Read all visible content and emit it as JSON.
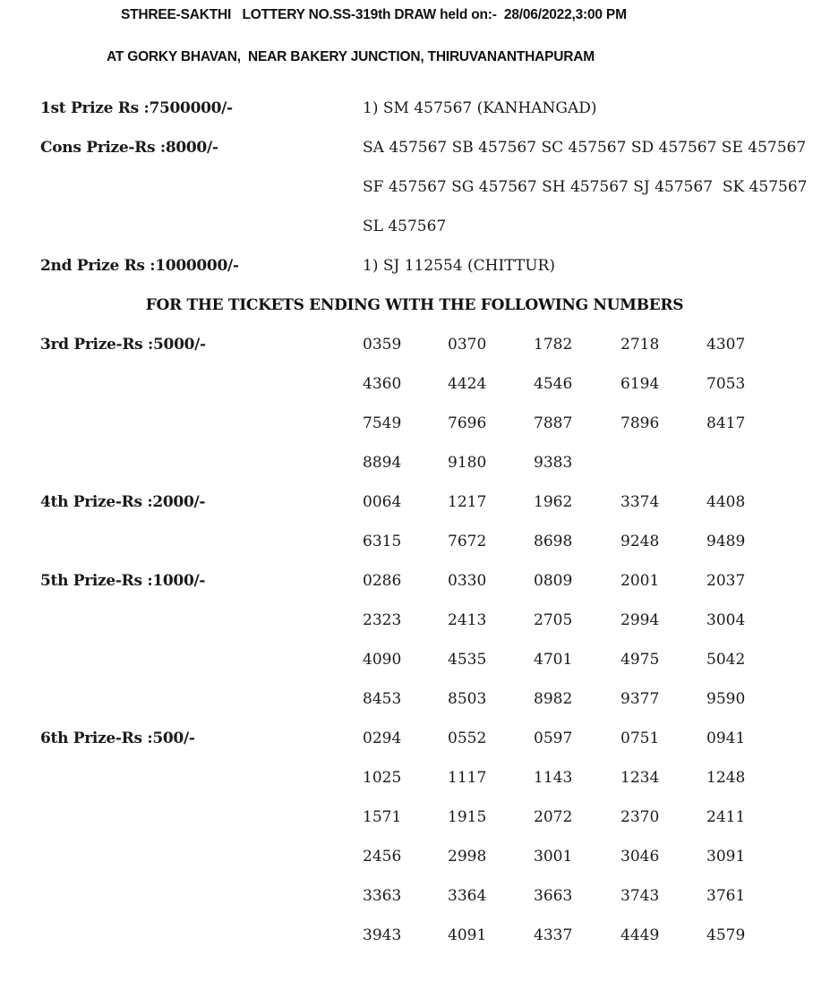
{
  "header": {
    "title": "STHREE-SAKTHI   LOTTERY NO.SS-319th DRAW held on:-  28/06/2022,3:00 PM",
    "venue": "AT GORKY BHAVAN,  NEAR BAKERY JUNCTION, THIRUVANANTHAPURAM"
  },
  "top_prizes": [
    {
      "label": "1st Prize Rs :7500000/-",
      "lines": [
        "1) SM 457567 (KANHANGAD)"
      ]
    },
    {
      "label": "Cons Prize-Rs :8000/-",
      "lines": [
        "SA 457567 SB 457567 SC 457567 SD 457567 SE 457567",
        "SF 457567 SG 457567 SH 457567 SJ 457567  SK 457567",
        "SL 457567"
      ]
    },
    {
      "label": "2nd Prize Rs :1000000/-",
      "lines": [
        "1) SJ 112554 (CHITTUR)"
      ]
    }
  ],
  "notice": "FOR THE TICKETS ENDING WITH THE FOLLOWING NUMBERS",
  "number_prizes": [
    {
      "label": "3rd Prize-Rs :5000/-",
      "numbers": [
        "0359",
        "0370",
        "1782",
        "2718",
        "4307",
        "4360",
        "4424",
        "4546",
        "6194",
        "7053",
        "7549",
        "7696",
        "7887",
        "7896",
        "8417",
        "8894",
        "9180",
        "9383"
      ]
    },
    {
      "label": "4th Prize-Rs :2000/-",
      "numbers": [
        "0064",
        "1217",
        "1962",
        "3374",
        "4408",
        "6315",
        "7672",
        "8698",
        "9248",
        "9489"
      ]
    },
    {
      "label": "5th Prize-Rs :1000/-",
      "numbers": [
        "0286",
        "0330",
        "0809",
        "2001",
        "2037",
        "2323",
        "2413",
        "2705",
        "2994",
        "3004",
        "4090",
        "4535",
        "4701",
        "4975",
        "5042",
        "8453",
        "8503",
        "8982",
        "9377",
        "9590"
      ]
    },
    {
      "label": "6th Prize-Rs :500/-",
      "numbers": [
        "0294",
        "0552",
        "0597",
        "0751",
        "0941",
        "1025",
        "1117",
        "1143",
        "1234",
        "1248",
        "1571",
        "1915",
        "2072",
        "2370",
        "2411",
        "2456",
        "2998",
        "3001",
        "3046",
        "3091",
        "3363",
        "3364",
        "3663",
        "3743",
        "3761",
        "3943",
        "4091",
        "4337",
        "4449",
        "4579"
      ]
    }
  ]
}
